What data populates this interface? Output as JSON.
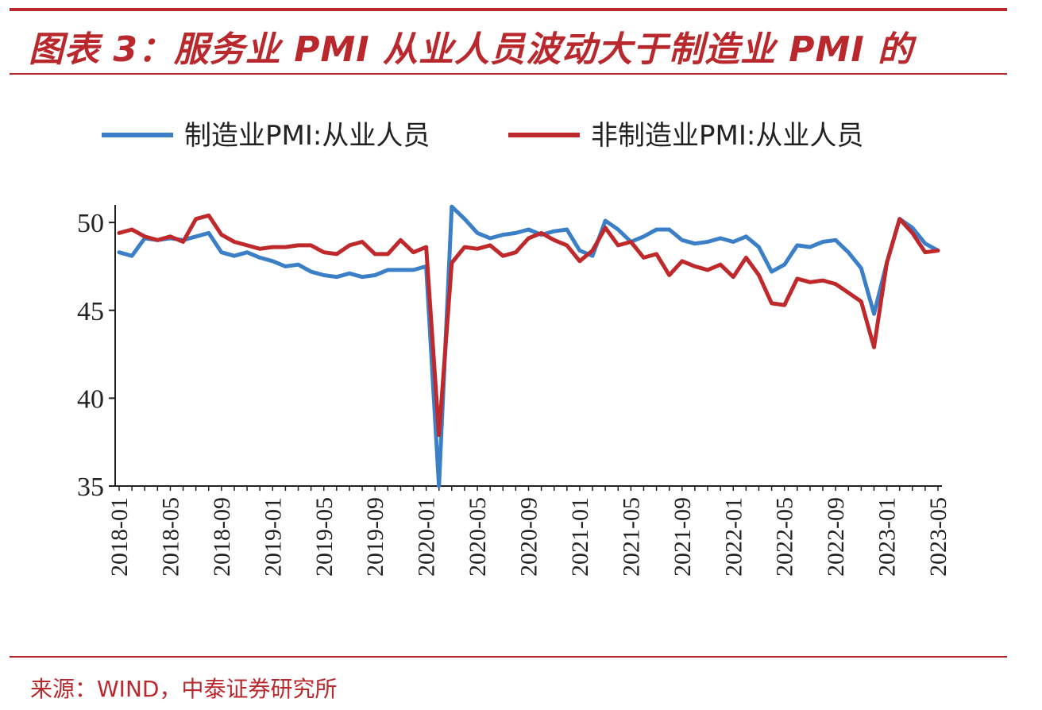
{
  "title": "图表 3：服务业 PMI 从业人员波动大于制造业 PMI 的",
  "source": "来源：WIND，中泰证券研究所",
  "colors": {
    "accent": "#b8282c",
    "manufacturing": "#3b7fc7",
    "non_manufacturing": "#c0292b"
  },
  "chart_data": {
    "type": "line",
    "title": "",
    "xlabel": "",
    "ylabel": "",
    "ylim": [
      35,
      51
    ],
    "yticks": [
      "35",
      "40",
      "45",
      "50"
    ],
    "legend_position": "top",
    "tick_labels": [
      "2018-01",
      "2018-05",
      "2018-09",
      "2019-01",
      "2019-05",
      "2019-09",
      "2020-01",
      "2020-05",
      "2020-09",
      "2021-01",
      "2021-05",
      "2021-09",
      "2022-01",
      "2022-05",
      "2022-09",
      "2023-01",
      "2023-05"
    ],
    "x": [
      "2018-01",
      "2018-02",
      "2018-03",
      "2018-04",
      "2018-05",
      "2018-06",
      "2018-07",
      "2018-08",
      "2018-09",
      "2018-10",
      "2018-11",
      "2018-12",
      "2019-01",
      "2019-02",
      "2019-03",
      "2019-04",
      "2019-05",
      "2019-06",
      "2019-07",
      "2019-08",
      "2019-09",
      "2019-10",
      "2019-11",
      "2019-12",
      "2020-01",
      "2020-02",
      "2020-03",
      "2020-04",
      "2020-05",
      "2020-06",
      "2020-07",
      "2020-08",
      "2020-09",
      "2020-10",
      "2020-11",
      "2020-12",
      "2021-01",
      "2021-02",
      "2021-03",
      "2021-04",
      "2021-05",
      "2021-06",
      "2021-07",
      "2021-08",
      "2021-09",
      "2021-10",
      "2021-11",
      "2021-12",
      "2022-01",
      "2022-02",
      "2022-03",
      "2022-04",
      "2022-05",
      "2022-06",
      "2022-07",
      "2022-08",
      "2022-09",
      "2022-10",
      "2022-11",
      "2022-12",
      "2023-01",
      "2023-02",
      "2023-03",
      "2023-04",
      "2023-05"
    ],
    "series": [
      {
        "name": "制造业PMI:从业人员",
        "values": [
          48.3,
          48.1,
          49.1,
          49.0,
          49.1,
          49.0,
          49.2,
          49.4,
          48.3,
          48.1,
          48.3,
          48.0,
          47.8,
          47.5,
          47.6,
          47.2,
          47.0,
          46.9,
          47.1,
          46.9,
          47.0,
          47.3,
          47.3,
          47.3,
          47.5,
          35.0,
          50.9,
          50.2,
          49.4,
          49.1,
          49.3,
          49.4,
          49.6,
          49.3,
          49.5,
          49.6,
          48.4,
          48.1,
          50.1,
          49.6,
          48.9,
          49.2,
          49.6,
          49.6,
          49.0,
          48.8,
          48.9,
          49.1,
          48.9,
          49.2,
          48.6,
          47.2,
          47.6,
          48.7,
          48.6,
          48.9,
          49.0,
          48.3,
          47.4,
          44.8,
          47.7,
          50.2,
          49.7,
          48.8,
          48.4
        ]
      },
      {
        "name": "非制造业PMI:从业人员",
        "values": [
          49.4,
          49.6,
          49.2,
          49.0,
          49.2,
          48.9,
          50.2,
          50.4,
          49.3,
          48.9,
          48.7,
          48.5,
          48.6,
          48.6,
          48.7,
          48.7,
          48.3,
          48.2,
          48.7,
          48.9,
          48.2,
          48.2,
          49.0,
          48.3,
          48.6,
          37.9,
          47.7,
          48.6,
          48.5,
          48.7,
          48.1,
          48.3,
          49.1,
          49.4,
          49.0,
          48.7,
          47.8,
          48.4,
          49.7,
          48.7,
          48.9,
          48.0,
          48.2,
          47.0,
          47.8,
          47.5,
          47.3,
          47.6,
          46.9,
          48.0,
          47.0,
          45.4,
          45.3,
          46.8,
          46.6,
          46.7,
          46.5,
          46.0,
          45.5,
          42.9,
          47.7,
          50.2,
          49.4,
          48.3,
          48.4
        ]
      }
    ]
  }
}
